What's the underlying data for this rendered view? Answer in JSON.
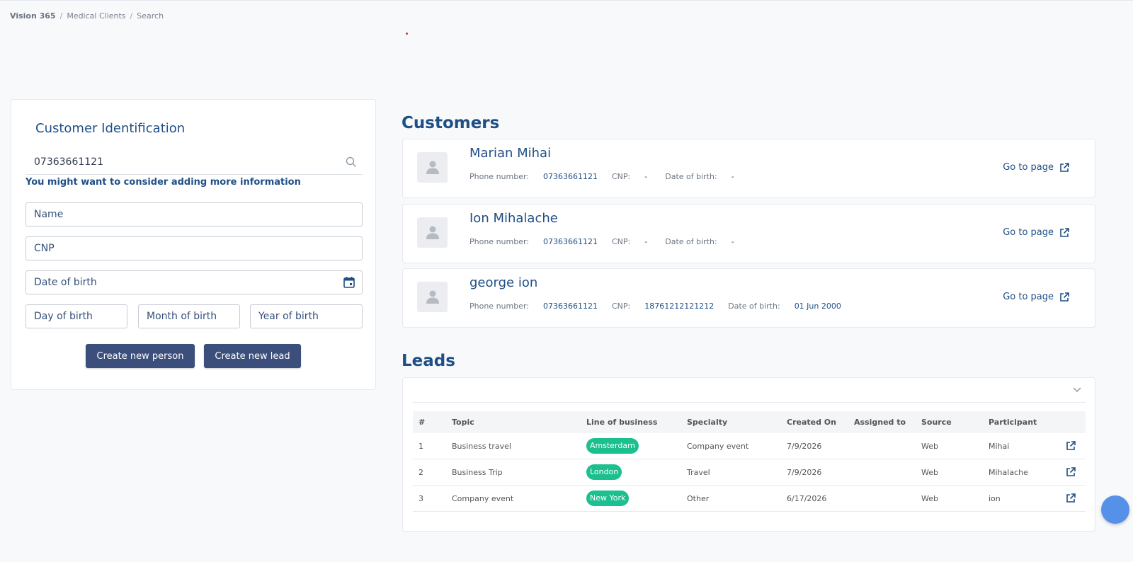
{
  "breadcrumb": {
    "root": "Vision 365",
    "level1": "Medical Clients",
    "level2": "Search"
  },
  "identification": {
    "title": "Customer Identification",
    "search_value": "07363661121",
    "hint": "You might want to consider adding more information",
    "fields": {
      "name": "Name",
      "cnp": "CNP",
      "dob": "Date of birth",
      "day": "Day of birth",
      "month": "Month of birth",
      "year": "Year of birth"
    },
    "buttons": {
      "create_person": "Create new person",
      "create_lead": "Create new lead"
    }
  },
  "customers": {
    "title": "Customers",
    "labels": {
      "phone": "Phone number:",
      "cnp": "CNP:",
      "dob": "Date of birth:",
      "goto": "Go to page"
    },
    "items": [
      {
        "name": "Marian Mihai",
        "phone": "07363661121",
        "cnp": "-",
        "dob": "-"
      },
      {
        "name": "Ion Mihalache",
        "phone": "07363661121",
        "cnp": "-",
        "dob": "-"
      },
      {
        "name": "george ion",
        "phone": "07363661121",
        "cnp": "18761212121212",
        "dob": "01 Jun 2000"
      }
    ]
  },
  "leads": {
    "title": "Leads",
    "columns": [
      "#",
      "Topic",
      "Line of business",
      "Specialty",
      "Created On",
      "Assigned to",
      "Source",
      "Participant"
    ],
    "rows": [
      {
        "num": "1",
        "topic": "Business travel",
        "lob": "Amsterdam",
        "specialty": "Company event",
        "created": "7/9/2026",
        "assigned": "",
        "source": "Web",
        "participant": "Mihai"
      },
      {
        "num": "2",
        "topic": "Business Trip",
        "lob": "London",
        "specialty": "Travel",
        "created": "7/9/2026",
        "assigned": "",
        "source": "Web",
        "participant": "Mihalache"
      },
      {
        "num": "3",
        "topic": "Company event",
        "lob": "New York",
        "specialty": "Other",
        "created": "6/17/2026",
        "assigned": "",
        "source": "Web",
        "participant": "ion"
      }
    ]
  },
  "colors": {
    "primary": "#1f4f86",
    "button": "#3c4f7c",
    "badge": "#1cbf8e",
    "fab": "#5591e8"
  }
}
